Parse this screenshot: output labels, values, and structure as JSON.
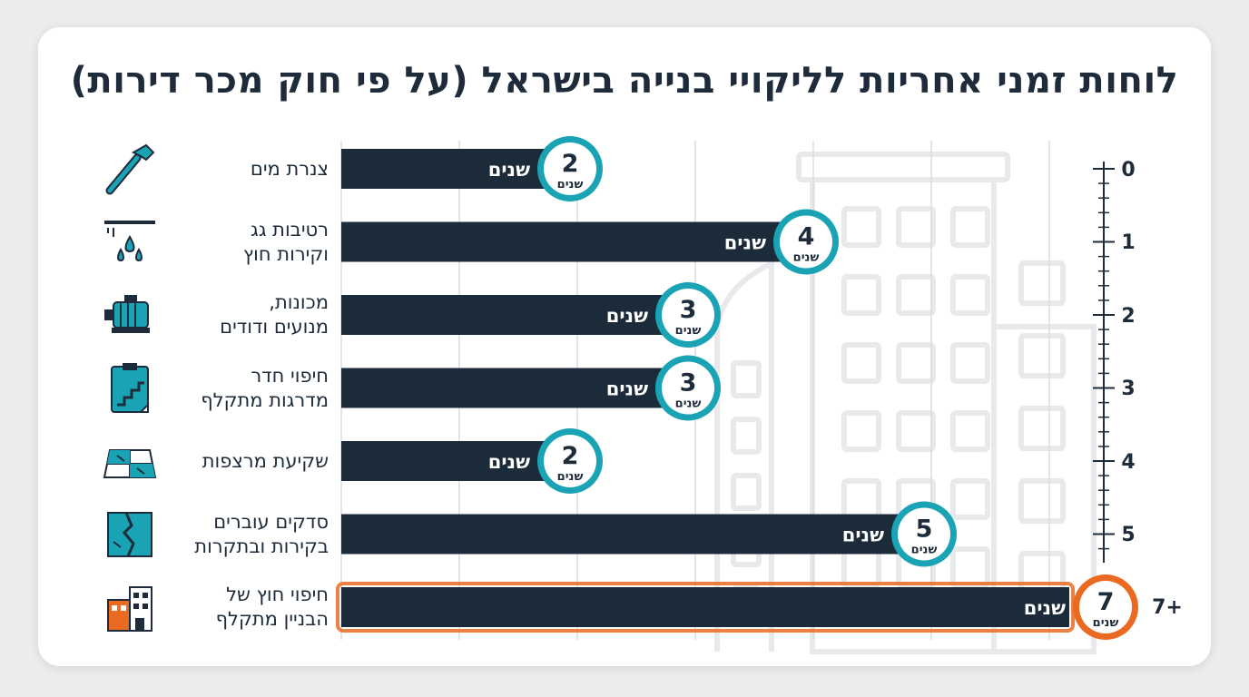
{
  "title": "לוחות זמני אחריות לליקויי בנייה בישראל (על פי חוק מכר דירות)",
  "colors": {
    "bar": "#1c2b3a",
    "accent": "#1aa3b4",
    "highlight": "#ea6a22",
    "grid": "#d9dde0",
    "ink": "#1d2b3a"
  },
  "chart_data": {
    "type": "bar",
    "orientation": "horizontal",
    "title": "לוחות זמני אחריות לליקויי בנייה בישראל (על פי חוק מכר דירות)",
    "categories": [
      {
        "label": "צנרת מים",
        "icon": "pipe-wrench-icon"
      },
      {
        "label": "רטיבות גג\nוקירות חוץ",
        "icon": "water-drops-icon"
      },
      {
        "label": "מכונות,\nמנועים ודודים",
        "icon": "motor-icon"
      },
      {
        "label": "חיפוי חדר\nמדרגות מתקלף",
        "icon": "clipboard-stairs-icon"
      },
      {
        "label": "שקיעת מרצפות",
        "icon": "cracked-tiles-icon"
      },
      {
        "label": "סדקים עוברים\nבקירות ובתקרות",
        "icon": "cracked-wall-icon"
      },
      {
        "label": "חיפוי חוץ של\nהבניין מתקלף",
        "icon": "building-facade-icon"
      }
    ],
    "values": [
      2,
      4,
      3,
      3,
      2,
      5,
      7
    ],
    "highlight_index": 6,
    "value_unit": "שנים",
    "bar_label": "שנים",
    "badge_unit": "שנים",
    "axis_ticks": [
      "0",
      "1",
      "2",
      "3",
      "4",
      "5",
      "7+"
    ],
    "xlim": [
      0,
      7
    ],
    "grid": true,
    "legend": "none"
  }
}
